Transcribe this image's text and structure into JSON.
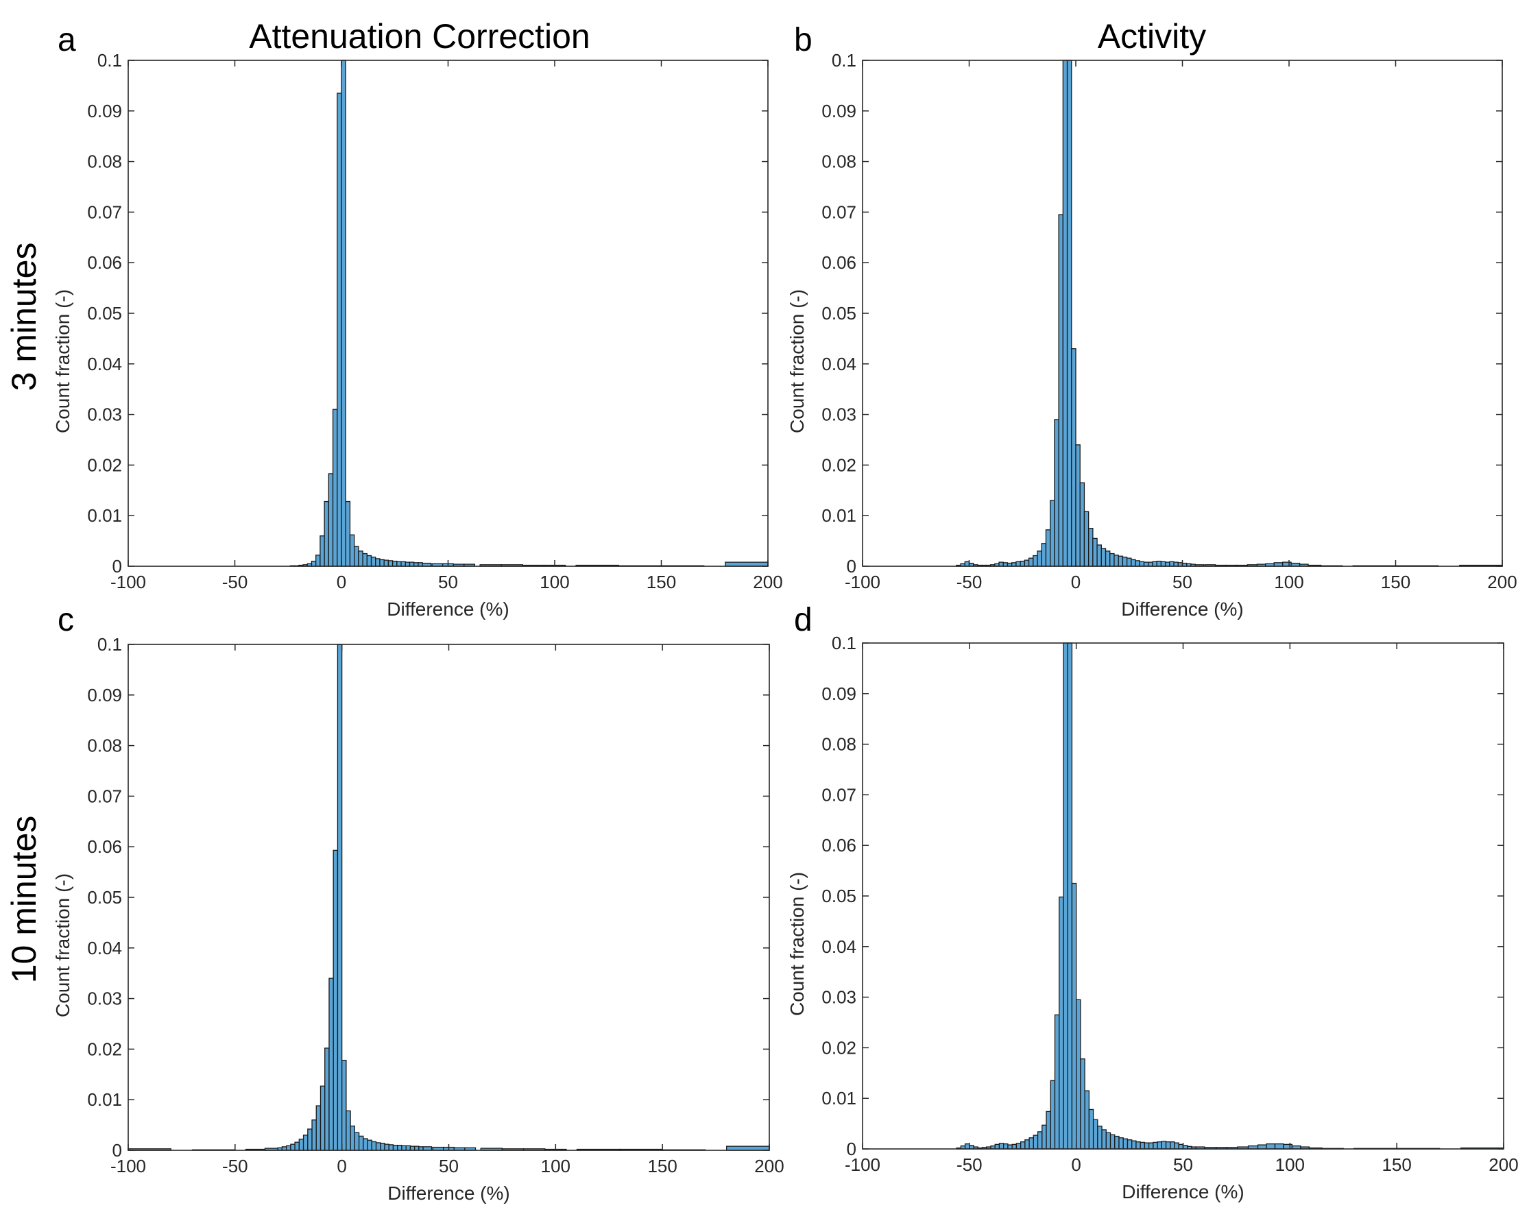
{
  "figure": {
    "column_titles": [
      "Attenuation Correction",
      "Activity"
    ],
    "row_titles": [
      "3 minutes",
      "10 minutes"
    ],
    "bar_color": "#5aa5d6",
    "edge_color": "#1a1a1a"
  },
  "chart_data": [
    {
      "type": "bar",
      "panel": "a",
      "title": "",
      "xlabel": "Difference (%)",
      "ylabel": "Count fraction (-)",
      "xlim": [
        -100,
        200
      ],
      "ylim": [
        0,
        0.1
      ],
      "xticks": [
        "-100",
        "-50",
        "0",
        "50",
        "100",
        "150",
        "200"
      ],
      "yticks": [
        "0",
        "0.01",
        "0.02",
        "0.03",
        "0.04",
        "0.05",
        "0.06",
        "0.07",
        "0.08",
        "0.09",
        "0.1"
      ],
      "x": [
        -23,
        -21,
        -19,
        -17,
        -15,
        -13,
        -11,
        -9,
        -7,
        -5,
        -3,
        -1,
        1,
        3,
        5,
        7,
        9,
        11,
        13,
        15,
        17,
        19,
        21,
        23,
        25,
        27,
        29,
        31,
        33,
        35,
        37,
        40,
        45,
        50,
        55,
        60,
        70,
        80,
        90,
        100,
        120,
        140,
        160,
        190
      ],
      "bin_width": [
        2,
        2,
        2,
        2,
        2,
        2,
        2,
        2,
        2,
        2,
        2,
        2,
        2,
        2,
        2,
        2,
        2,
        2,
        2,
        2,
        2,
        2,
        2,
        2,
        2,
        2,
        2,
        2,
        2,
        2,
        2,
        4,
        5,
        5,
        5,
        5,
        10,
        10,
        10,
        10,
        20,
        20,
        20,
        20
      ],
      "values": [
        0.0001,
        0.0001,
        0.0002,
        0.0003,
        0.0005,
        0.001,
        0.0022,
        0.006,
        0.0128,
        0.0183,
        0.031,
        0.0935,
        0.1,
        0.0128,
        0.0062,
        0.0039,
        0.003,
        0.0025,
        0.0021,
        0.0018,
        0.0015,
        0.0013,
        0.0012,
        0.0011,
        0.001,
        0.0009,
        0.0009,
        0.0008,
        0.0008,
        0.0007,
        0.0007,
        0.0006,
        0.0005,
        0.0005,
        0.0004,
        0.0004,
        0.0003,
        0.0003,
        0.0002,
        0.0002,
        0.0002,
        0.0001,
        0.0001,
        0.0008
      ]
    },
    {
      "type": "bar",
      "panel": "b",
      "title": "",
      "xlabel": "Difference (%)",
      "ylabel": "Count fraction (-)",
      "xlim": [
        -100,
        200
      ],
      "ylim": [
        0,
        0.1
      ],
      "xticks": [
        "-100",
        "-50",
        "0",
        "50",
        "100",
        "150",
        "200"
      ],
      "yticks": [
        "0",
        "0.01",
        "0.02",
        "0.03",
        "0.04",
        "0.05",
        "0.06",
        "0.07",
        "0.08",
        "0.09",
        "0.1"
      ],
      "x": [
        -55,
        -53,
        -51,
        -49,
        -47,
        -45,
        -43,
        -41,
        -39,
        -37,
        -35,
        -33,
        -31,
        -29,
        -27,
        -25,
        -23,
        -21,
        -19,
        -17,
        -15,
        -13,
        -11,
        -9,
        -7,
        -5,
        -3,
        -1,
        1,
        3,
        5,
        7,
        9,
        11,
        13,
        15,
        17,
        19,
        21,
        23,
        25,
        27,
        29,
        31,
        33,
        35,
        37,
        39,
        41,
        43,
        45,
        47,
        49,
        51,
        53,
        55,
        58,
        63,
        68,
        73,
        78,
        83,
        87,
        91,
        95,
        99,
        103,
        107,
        112,
        120,
        140,
        160,
        190
      ],
      "bin_width": [
        2,
        2,
        2,
        2,
        2,
        2,
        2,
        2,
        2,
        2,
        2,
        2,
        2,
        2,
        2,
        2,
        2,
        2,
        2,
        2,
        2,
        2,
        2,
        2,
        2,
        2,
        2,
        2,
        2,
        2,
        2,
        2,
        2,
        2,
        2,
        2,
        2,
        2,
        2,
        2,
        2,
        2,
        2,
        2,
        2,
        2,
        2,
        2,
        2,
        2,
        2,
        2,
        2,
        2,
        2,
        2,
        4,
        5,
        5,
        5,
        5,
        5,
        4,
        4,
        4,
        4,
        4,
        4,
        6,
        10,
        20,
        20,
        20
      ],
      "values": [
        0.0002,
        0.0005,
        0.0009,
        0.0006,
        0.0003,
        0.0002,
        0.0002,
        0.0002,
        0.0003,
        0.0005,
        0.0008,
        0.0007,
        0.0006,
        0.0007,
        0.0009,
        0.001,
        0.0012,
        0.0016,
        0.0021,
        0.003,
        0.0045,
        0.0072,
        0.013,
        0.029,
        0.0695,
        0.1,
        0.1,
        0.043,
        0.024,
        0.0165,
        0.0108,
        0.0075,
        0.0055,
        0.0042,
        0.0035,
        0.003,
        0.0025,
        0.0022,
        0.002,
        0.0018,
        0.0016,
        0.0013,
        0.0011,
        0.0009,
        0.0008,
        0.0008,
        0.0009,
        0.001,
        0.0009,
        0.0008,
        0.0009,
        0.0008,
        0.0007,
        0.0006,
        0.0005,
        0.0004,
        0.0003,
        0.0003,
        0.0002,
        0.0002,
        0.0002,
        0.0003,
        0.0004,
        0.0005,
        0.0007,
        0.0008,
        0.0006,
        0.0004,
        0.0002,
        0.0001,
        0.0001,
        0.0001,
        0.0002
      ]
    },
    {
      "type": "bar",
      "panel": "c",
      "title": "",
      "xlabel": "Difference (%)",
      "ylabel": "Count fraction (-)",
      "xlim": [
        -100,
        200
      ],
      "ylim": [
        0,
        0.1
      ],
      "xticks": [
        "-100",
        "-50",
        "0",
        "50",
        "100",
        "150",
        "200"
      ],
      "yticks": [
        "0",
        "0.01",
        "0.02",
        "0.03",
        "0.04",
        "0.05",
        "0.06",
        "0.07",
        "0.08",
        "0.09",
        "0.1"
      ],
      "x": [
        -90,
        -60,
        -40,
        -33,
        -29,
        -27,
        -25,
        -23,
        -21,
        -19,
        -17,
        -15,
        -13,
        -11,
        -9,
        -7,
        -5,
        -3,
        -1,
        1,
        3,
        5,
        7,
        9,
        11,
        13,
        15,
        17,
        19,
        21,
        23,
        25,
        27,
        29,
        31,
        33,
        35,
        37,
        40,
        45,
        50,
        55,
        60,
        70,
        80,
        90,
        100,
        120,
        140,
        160,
        190
      ],
      "bin_width": [
        20,
        20,
        10,
        6,
        2,
        2,
        2,
        2,
        2,
        2,
        2,
        2,
        2,
        2,
        2,
        2,
        2,
        2,
        2,
        2,
        2,
        2,
        2,
        2,
        2,
        2,
        2,
        2,
        2,
        2,
        2,
        2,
        2,
        2,
        2,
        2,
        2,
        2,
        4,
        5,
        5,
        5,
        5,
        10,
        10,
        10,
        10,
        20,
        20,
        20,
        20
      ],
      "values": [
        0.0003,
        0.0001,
        0.0002,
        0.0004,
        0.0005,
        0.0007,
        0.0009,
        0.0012,
        0.0016,
        0.0022,
        0.003,
        0.0042,
        0.006,
        0.0088,
        0.0127,
        0.0202,
        0.034,
        0.0593,
        0.1,
        0.0178,
        0.0078,
        0.0048,
        0.0035,
        0.0028,
        0.0023,
        0.002,
        0.0017,
        0.0015,
        0.0014,
        0.0012,
        0.0011,
        0.001,
        0.001,
        0.0009,
        0.0009,
        0.0008,
        0.0008,
        0.0007,
        0.0007,
        0.0006,
        0.0006,
        0.0005,
        0.0005,
        0.0004,
        0.0003,
        0.0003,
        0.0002,
        0.0002,
        0.0002,
        0.0001,
        0.0008
      ]
    },
    {
      "type": "bar",
      "panel": "d",
      "title": "",
      "xlabel": "Difference (%)",
      "ylabel": "Count fraction (-)",
      "xlim": [
        -100,
        200
      ],
      "ylim": [
        0,
        0.1
      ],
      "xticks": [
        "-100",
        "-50",
        "0",
        "50",
        "100",
        "150",
        "200"
      ],
      "yticks": [
        "0",
        "0.01",
        "0.02",
        "0.03",
        "0.04",
        "0.05",
        "0.06",
        "0.07",
        "0.08",
        "0.09",
        "0.1"
      ],
      "x": [
        -55,
        -53,
        -51,
        -49,
        -47,
        -45,
        -43,
        -41,
        -39,
        -37,
        -35,
        -33,
        -31,
        -29,
        -27,
        -25,
        -23,
        -21,
        -19,
        -17,
        -15,
        -13,
        -11,
        -9,
        -7,
        -5,
        -3,
        -1,
        1,
        3,
        5,
        7,
        9,
        11,
        13,
        15,
        17,
        19,
        21,
        23,
        25,
        27,
        29,
        31,
        33,
        35,
        37,
        39,
        41,
        43,
        45,
        47,
        49,
        51,
        53,
        55,
        58,
        63,
        68,
        73,
        78,
        83,
        87,
        91,
        95,
        99,
        103,
        107,
        112,
        120,
        140,
        160,
        190
      ],
      "bin_width": [
        2,
        2,
        2,
        2,
        2,
        2,
        2,
        2,
        2,
        2,
        2,
        2,
        2,
        2,
        2,
        2,
        2,
        2,
        2,
        2,
        2,
        2,
        2,
        2,
        2,
        2,
        2,
        2,
        2,
        2,
        2,
        2,
        2,
        2,
        2,
        2,
        2,
        2,
        2,
        2,
        2,
        2,
        2,
        2,
        2,
        2,
        2,
        2,
        2,
        2,
        2,
        2,
        2,
        2,
        2,
        2,
        4,
        5,
        5,
        5,
        5,
        5,
        4,
        4,
        4,
        4,
        4,
        4,
        6,
        10,
        20,
        20,
        20
      ],
      "values": [
        0.0002,
        0.0006,
        0.001,
        0.0007,
        0.0004,
        0.0002,
        0.0003,
        0.0004,
        0.0006,
        0.0009,
        0.0011,
        0.001,
        0.0008,
        0.0009,
        0.0011,
        0.0014,
        0.0018,
        0.0022,
        0.0027,
        0.0034,
        0.0047,
        0.0074,
        0.0135,
        0.0265,
        0.0498,
        0.1,
        0.1,
        0.0525,
        0.0295,
        0.0178,
        0.0115,
        0.0078,
        0.0058,
        0.0045,
        0.0038,
        0.0032,
        0.0028,
        0.0025,
        0.0022,
        0.002,
        0.0018,
        0.0016,
        0.0014,
        0.0013,
        0.0012,
        0.0012,
        0.0013,
        0.0014,
        0.0015,
        0.0014,
        0.0014,
        0.0012,
        0.0009,
        0.0007,
        0.0005,
        0.0004,
        0.0004,
        0.0003,
        0.0003,
        0.0003,
        0.0004,
        0.0006,
        0.0008,
        0.001,
        0.001,
        0.0009,
        0.0006,
        0.0004,
        0.0002,
        0.0001,
        0.0001,
        0.0001,
        0.0002
      ]
    }
  ]
}
